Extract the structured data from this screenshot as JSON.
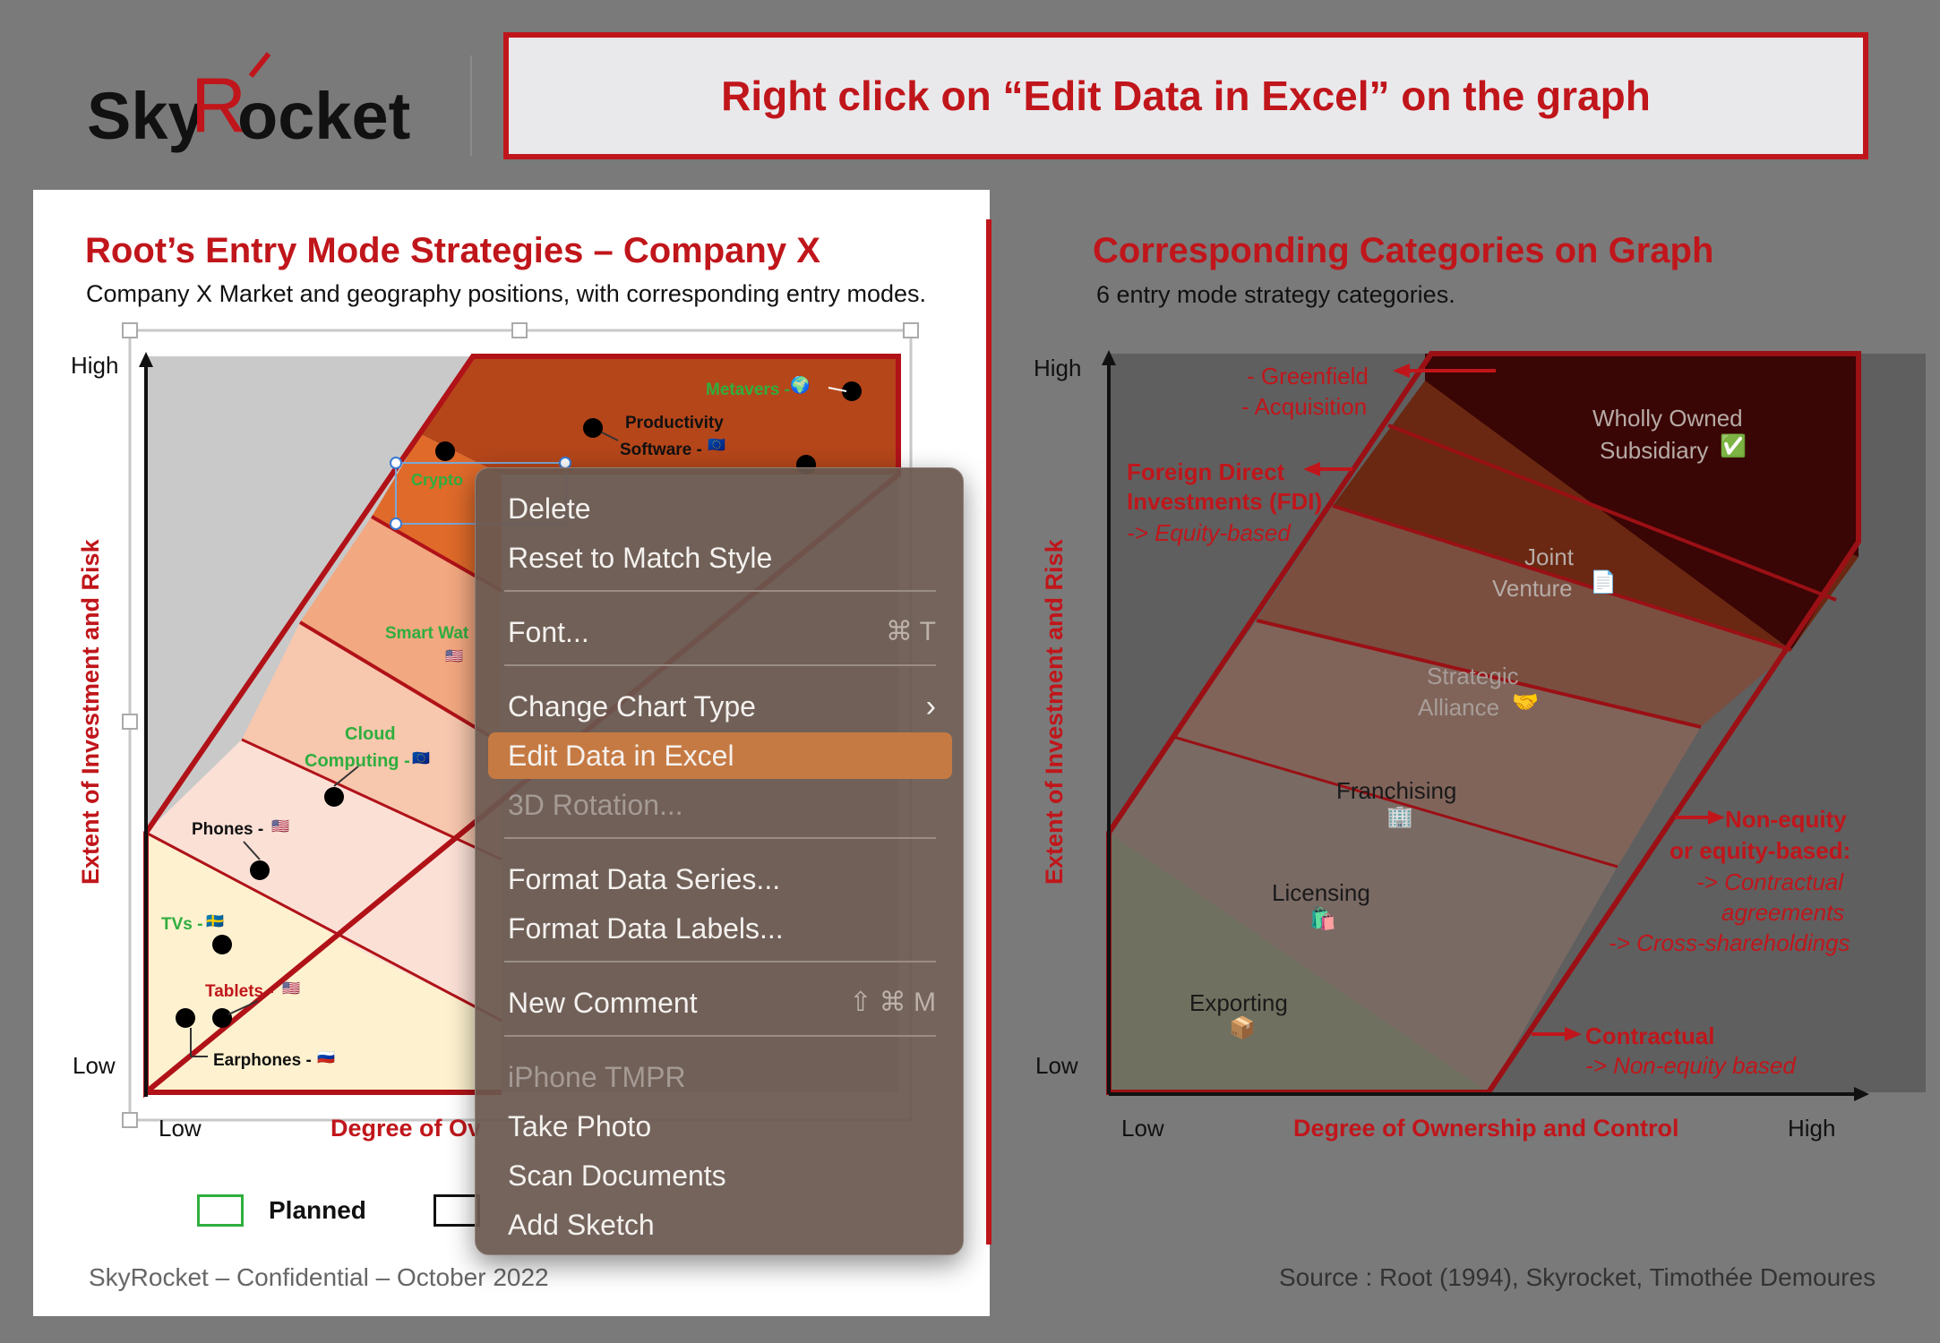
{
  "logo": {
    "text_a": "Sky",
    "text_b": "R",
    "text_c": "ocket"
  },
  "banner": {
    "text": "Right click on “Edit Data in Excel” on the graph"
  },
  "left": {
    "title": "Root’s Entry Mode Strategies – Company X",
    "subtitle": "Company X Market and geography positions, with corresponding entry modes.",
    "y_high": "High",
    "y_low": "Low",
    "x_low": "Low",
    "x_label": "Degree of Ov",
    "y_axis_label": "Extent of Investment and Risk",
    "points": [
      {
        "label": "Metavers -",
        "flag": "🌍"
      },
      {
        "label": "Productivity",
        "label2": "Software -",
        "flag": "🇪🇺"
      },
      {
        "label": "Crypto"
      },
      {
        "label": "Smart Wat",
        "flag": "🇺🇸"
      },
      {
        "label": "Cloud",
        "label2": "Computing -",
        "flag": "🇪🇺"
      },
      {
        "label": "Phones -",
        "flag": "🇺🇸"
      },
      {
        "label": "TVs -",
        "flag": "🇸🇪"
      },
      {
        "label": "Tablets -",
        "flag": "🇺🇸"
      },
      {
        "label": "Earphones -",
        "flag": "🇷🇺"
      }
    ],
    "legend": {
      "planned": "Planned"
    },
    "footer": "SkyRocket – Confidential – October 2022"
  },
  "right": {
    "title": "Corresponding Categories on Graph",
    "subtitle": "6 entry mode strategy categories.",
    "y_high": "High",
    "y_low": "Low",
    "x_low": "Low",
    "x_high": "High",
    "x_label": "Degree of Ownership and Control",
    "y_axis_label": "Extent of Investment and Risk",
    "bands": [
      {
        "label": "Exporting",
        "icon": "📦"
      },
      {
        "label": "Licensing",
        "icon": "🛍️"
      },
      {
        "label": "Franchising",
        "icon": "🏢"
      },
      {
        "label": "Strategic",
        "label2": "Alliance",
        "icon": "🤝"
      },
      {
        "label": "Joint",
        "label2": "Venture",
        "icon": "📄"
      },
      {
        "label": "Wholly Owned",
        "label2": "Subsidiary",
        "icon": "✅"
      }
    ],
    "notes": {
      "greenfield": "- Greenfield",
      "acquisition": "- Acquisition",
      "fdi1": "Foreign Direct",
      "fdi2": "Investments (FDI)",
      "fdi3": "-> Equity-based",
      "ne1": "Non-equity",
      "ne2": "or equity-based:",
      "ne3": "-> Contractual",
      "ne4": "agreements",
      "ne5": "-> Cross-shareholdings",
      "c1": "Contractual",
      "c2": "-> Non-equity based"
    },
    "source": "Source : Root (1994), Skyrocket, Timothée Demoures"
  },
  "context_menu": {
    "delete": "Delete",
    "reset": "Reset to Match Style",
    "font": "Font...",
    "font_sc": "⌘ T",
    "change_chart": "Change Chart Type",
    "edit_data": "Edit Data in Excel",
    "rotation": "3D Rotation...",
    "format_series": "Format Data Series...",
    "format_labels": "Format Data Labels...",
    "new_comment": "New Comment",
    "new_comment_sc": "⇧ ⌘ M",
    "iphone": "iPhone TMPR",
    "take_photo": "Take Photo",
    "scan": "Scan Documents",
    "sketch": "Add Sketch"
  }
}
